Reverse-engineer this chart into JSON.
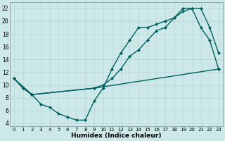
{
  "xlabel": "Humidex (Indice chaleur)",
  "xlim": [
    -0.5,
    23.5
  ],
  "ylim": [
    3.5,
    23
  ],
  "yticks": [
    4,
    6,
    8,
    10,
    12,
    14,
    16,
    18,
    20,
    22
  ],
  "xticks": [
    0,
    1,
    2,
    3,
    4,
    5,
    6,
    7,
    8,
    9,
    10,
    11,
    12,
    13,
    14,
    15,
    16,
    17,
    18,
    19,
    20,
    21,
    22,
    23
  ],
  "bg_color": "#cde8e8",
  "grid_color": "#b8d4d4",
  "line_color": "#006060",
  "line1_x": [
    0,
    1,
    2,
    3,
    4,
    5,
    6,
    7,
    8,
    9,
    10,
    11,
    12,
    13,
    14,
    15,
    16,
    17,
    18,
    19,
    20,
    21,
    22,
    23
  ],
  "line1_y": [
    11,
    9.5,
    8.5,
    7,
    6.5,
    5.5,
    5,
    4.5,
    4.5,
    7.5,
    9.5,
    12.5,
    15,
    17,
    19,
    19,
    19.5,
    20,
    20.5,
    22,
    22,
    19,
    17,
    12.5
  ],
  "line2_x": [
    0,
    1,
    2,
    9,
    10,
    11,
    12,
    13,
    14,
    15,
    16,
    17,
    18,
    19,
    20,
    21,
    22,
    23
  ],
  "line2_y": [
    11,
    9.5,
    8.5,
    9.5,
    10,
    11,
    12.5,
    14.5,
    15.5,
    17,
    18.5,
    19,
    20.5,
    21.5,
    22,
    22,
    19,
    15
  ],
  "line3_x": [
    0,
    2,
    9,
    23
  ],
  "line3_y": [
    11,
    8.5,
    9.5,
    12.5
  ],
  "line_width": 1.0,
  "marker": "D",
  "marker_size": 2.5
}
